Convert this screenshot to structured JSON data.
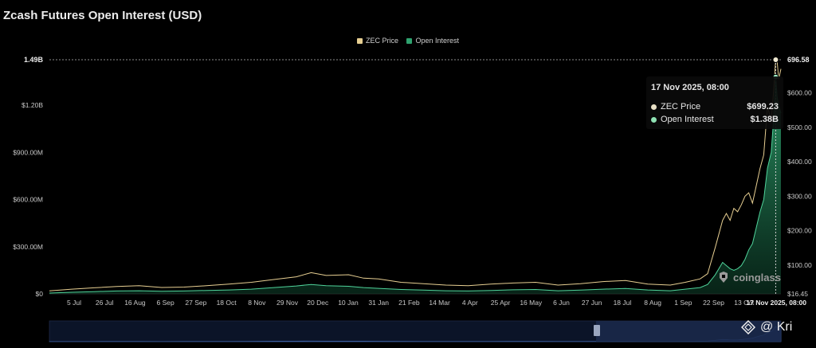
{
  "header": {
    "title": "Zcash Futures Open Interest (USD)"
  },
  "legend": [
    {
      "label": "ZEC Price",
      "color": "#e7cf92"
    },
    {
      "label": "Open Interest",
      "color": "#2fa36f"
    }
  ],
  "tooltip": {
    "date": "17 Nov 2025, 08:00",
    "rows": [
      {
        "label": "ZEC Price",
        "value": "$699.23",
        "color": "#e8e0c6"
      },
      {
        "label": "Open Interest",
        "value": "$1.38B",
        "color": "#8fe2b4"
      }
    ]
  },
  "watermark": {
    "text": "coinglass"
  },
  "brand": {
    "text": "@ Kri"
  },
  "chart_data": {
    "type": "line",
    "title": "Zcash Futures Open Interest (USD)",
    "x_ticks": [
      "5 Jul",
      "26 Jul",
      "16 Aug",
      "6 Sep",
      "27 Sep",
      "18 Oct",
      "8 Nov",
      "29 Nov",
      "20 Dec",
      "10 Jan",
      "31 Jan",
      "21 Feb",
      "14 Mar",
      "4 Apr",
      "25 Apr",
      "16 May",
      "6 Jun",
      "27 Jun",
      "18 Jul",
      "8 Aug",
      "1 Sep",
      "22 Sep",
      "13 Oct",
      "17 Nov 2025, 08:00"
    ],
    "y_left": {
      "ticks": [
        "$0",
        "$300.00M",
        "$600.00M",
        "$900.00M",
        "$1.20B"
      ],
      "values": [
        0,
        300,
        600,
        900,
        1200
      ],
      "max_label": "1.49B",
      "max": 1490,
      "unit": "M USD"
    },
    "y_right": {
      "ticks": [
        "$16.45",
        "$100.00",
        "$200.00",
        "$300.00",
        "$400.00",
        "$500.00",
        "$600.00"
      ],
      "values": [
        16.45,
        100,
        200,
        300,
        400,
        500,
        600
      ],
      "max_label": "696.58",
      "max": 696.58
    },
    "series": [
      {
        "name": "ZEC Price",
        "axis": "right",
        "color": "#e7cf92",
        "points": [
          [
            0,
            25
          ],
          [
            30,
            30
          ],
          [
            60,
            34
          ],
          [
            90,
            38
          ],
          [
            120,
            40
          ],
          [
            150,
            35
          ],
          [
            180,
            36
          ],
          [
            210,
            40
          ],
          [
            240,
            45
          ],
          [
            270,
            50
          ],
          [
            300,
            58
          ],
          [
            330,
            66
          ],
          [
            350,
            78
          ],
          [
            370,
            70
          ],
          [
            400,
            72
          ],
          [
            420,
            62
          ],
          [
            440,
            60
          ],
          [
            470,
            50
          ],
          [
            500,
            46
          ],
          [
            530,
            42
          ],
          [
            560,
            40
          ],
          [
            590,
            45
          ],
          [
            620,
            48
          ],
          [
            650,
            50
          ],
          [
            680,
            42
          ],
          [
            710,
            46
          ],
          [
            740,
            52
          ],
          [
            770,
            55
          ],
          [
            800,
            45
          ],
          [
            830,
            42
          ],
          [
            850,
            50
          ],
          [
            870,
            60
          ],
          [
            880,
            75
          ],
          [
            890,
            150
          ],
          [
            900,
            230
          ],
          [
            905,
            250
          ],
          [
            910,
            230
          ],
          [
            915,
            265
          ],
          [
            920,
            255
          ],
          [
            925,
            275
          ],
          [
            930,
            300
          ],
          [
            935,
            310
          ],
          [
            940,
            280
          ],
          [
            945,
            330
          ],
          [
            950,
            380
          ],
          [
            955,
            420
          ],
          [
            960,
            560
          ],
          [
            965,
            520
          ],
          [
            968,
            600
          ],
          [
            971,
            696.58
          ],
          [
            973,
            690
          ],
          [
            975,
            640
          ],
          [
            978,
            670
          ]
        ]
      },
      {
        "name": "Open Interest",
        "axis": "left",
        "color": "#2fa36f",
        "points": [
          [
            0,
            5
          ],
          [
            30,
            10
          ],
          [
            60,
            14
          ],
          [
            90,
            18
          ],
          [
            120,
            20
          ],
          [
            150,
            16
          ],
          [
            180,
            18
          ],
          [
            210,
            22
          ],
          [
            240,
            25
          ],
          [
            270,
            30
          ],
          [
            300,
            40
          ],
          [
            330,
            50
          ],
          [
            350,
            60
          ],
          [
            370,
            52
          ],
          [
            400,
            48
          ],
          [
            420,
            40
          ],
          [
            440,
            35
          ],
          [
            470,
            28
          ],
          [
            500,
            24
          ],
          [
            530,
            20
          ],
          [
            560,
            18
          ],
          [
            590,
            22
          ],
          [
            620,
            26
          ],
          [
            650,
            28
          ],
          [
            680,
            20
          ],
          [
            710,
            24
          ],
          [
            740,
            30
          ],
          [
            770,
            34
          ],
          [
            800,
            25
          ],
          [
            830,
            20
          ],
          [
            850,
            30
          ],
          [
            870,
            40
          ],
          [
            880,
            60
          ],
          [
            890,
            120
          ],
          [
            900,
            200
          ],
          [
            905,
            180
          ],
          [
            910,
            160
          ],
          [
            915,
            150
          ],
          [
            920,
            160
          ],
          [
            925,
            180
          ],
          [
            930,
            220
          ],
          [
            935,
            280
          ],
          [
            940,
            320
          ],
          [
            945,
            420
          ],
          [
            950,
            520
          ],
          [
            955,
            600
          ],
          [
            960,
            800
          ],
          [
            965,
            900
          ],
          [
            968,
            1100
          ],
          [
            971,
            1380
          ],
          [
            973,
            1250
          ],
          [
            975,
            1200
          ],
          [
            978,
            1150
          ]
        ]
      }
    ],
    "grid": false,
    "legend_position": "top-center"
  }
}
